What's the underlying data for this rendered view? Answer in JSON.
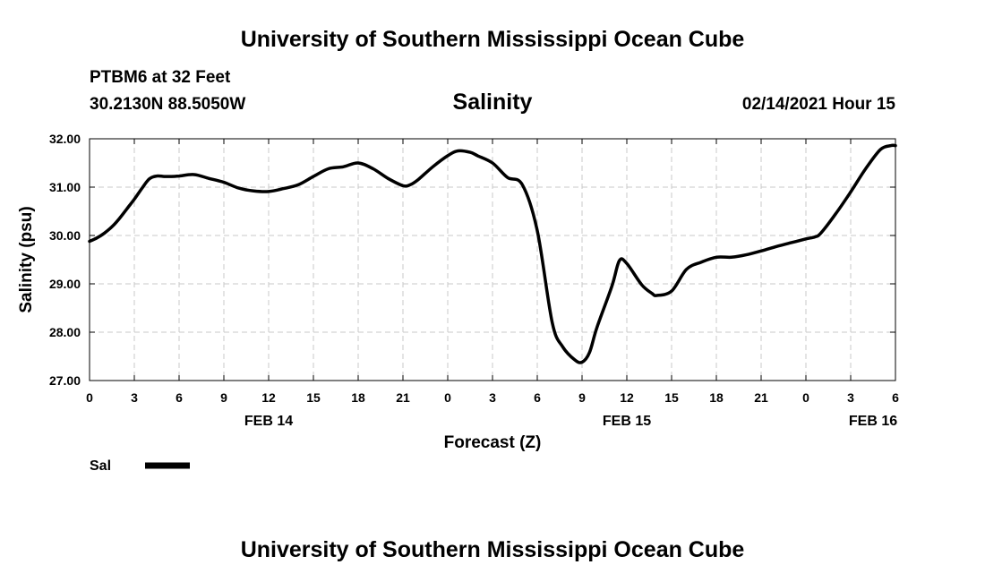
{
  "header": {
    "title": "University of Southern Mississippi Ocean Cube",
    "station": "PTBM6 at 32 Feet",
    "coordinates": "30.2130N 88.5050W",
    "variable": "Salinity",
    "datetime": "02/14/2021 Hour 15"
  },
  "footer": {
    "title": "University of Southern Mississippi Ocean Cube"
  },
  "colors": {
    "line": "#000000",
    "grid": "#c8c8c8",
    "background": "#ffffff"
  },
  "chart_data": {
    "type": "line",
    "title": "Salinity",
    "xlabel": "Forecast (Z)",
    "ylabel": "Salinity (psu)",
    "xlim": [
      0,
      54
    ],
    "ylim": [
      27.0,
      32.0
    ],
    "x_ticks": [
      0,
      3,
      6,
      9,
      12,
      15,
      18,
      21,
      24,
      27,
      30,
      33,
      36,
      39,
      42,
      45,
      48,
      51,
      54
    ],
    "x_tick_labels": [
      "0",
      "3",
      "6",
      "9",
      "12",
      "15",
      "18",
      "21",
      "0",
      "3",
      "6",
      "9",
      "12",
      "15",
      "18",
      "21",
      "0",
      "3",
      "6"
    ],
    "y_ticks": [
      27.0,
      28.0,
      29.0,
      30.0,
      31.0,
      32.0
    ],
    "y_tick_labels": [
      "27.00",
      "28.00",
      "29.00",
      "30.00",
      "31.00",
      "32.00"
    ],
    "date_labels": [
      {
        "x": 12,
        "label": "FEB 14"
      },
      {
        "x": 36,
        "label": "FEB 15"
      },
      {
        "x": 52.5,
        "label": "FEB 16"
      }
    ],
    "grid": true,
    "legend": {
      "placement": "bottom-left",
      "entries": [
        "Sal"
      ]
    },
    "series": [
      {
        "name": "Sal",
        "x": [
          0,
          0.5,
          1,
          1.5,
          2,
          2.5,
          3,
          3.5,
          4,
          4.5,
          5,
          5.5,
          6,
          7,
          8,
          9,
          10,
          11,
          12,
          13,
          14,
          15,
          16,
          17,
          18,
          19,
          20,
          21,
          21.5,
          22,
          23,
          24,
          24.7,
          25.5,
          26,
          27,
          28,
          29,
          30,
          31,
          31.7,
          32.5,
          33,
          33.5,
          34,
          35,
          35.5,
          36,
          37,
          37.7,
          38,
          39,
          40,
          41,
          42,
          43,
          44,
          45,
          46,
          47,
          48,
          48.6,
          49,
          50,
          51,
          52,
          53,
          53.7,
          54
        ],
        "y": [
          29.88,
          29.95,
          30.05,
          30.18,
          30.35,
          30.55,
          30.75,
          30.97,
          31.17,
          31.23,
          31.22,
          31.22,
          31.23,
          31.26,
          31.18,
          31.1,
          30.98,
          30.92,
          30.91,
          30.97,
          31.05,
          31.22,
          31.38,
          31.42,
          31.5,
          31.38,
          31.18,
          31.03,
          31.05,
          31.15,
          31.42,
          31.65,
          31.75,
          31.72,
          31.65,
          31.5,
          31.2,
          31.05,
          30.1,
          28.2,
          27.7,
          27.43,
          27.38,
          27.58,
          28.1,
          28.95,
          29.48,
          29.42,
          28.98,
          28.8,
          28.76,
          28.85,
          29.3,
          29.45,
          29.55,
          29.55,
          29.6,
          29.68,
          29.77,
          29.85,
          29.93,
          29.97,
          30.05,
          30.45,
          30.9,
          31.38,
          31.78,
          31.86,
          31.86
        ]
      }
    ]
  }
}
